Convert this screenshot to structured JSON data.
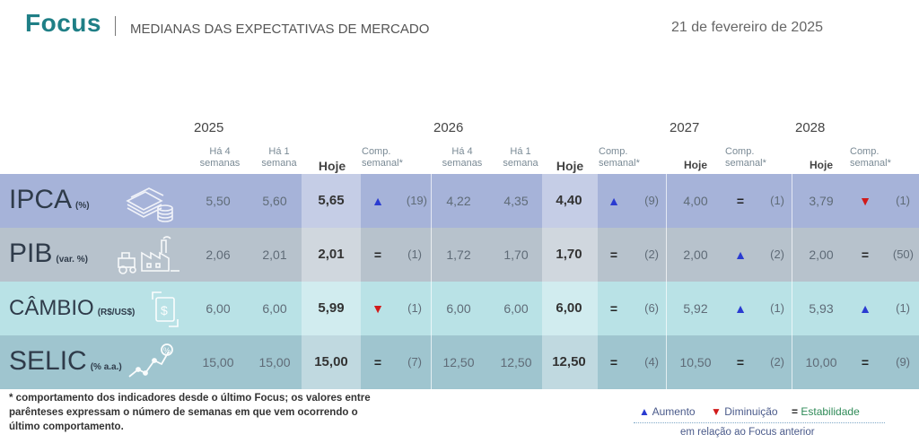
{
  "header": {
    "brand": "Focus",
    "subtitle": "MEDIANAS DAS EXPECTATIVAS DE MERCADO",
    "date": "21 de fevereiro de 2025"
  },
  "years": [
    "2025",
    "2026",
    "2027",
    "2028"
  ],
  "columns": {
    "ha4": "Há 4 semanas",
    "ha4_l1": "Há 4",
    "ha4_l2": "semanas",
    "ha1_l1": "Há 1",
    "ha1_l2": "semana",
    "hoje": "Hoje",
    "comp_l1": "Comp.",
    "comp_l2": "semanal*"
  },
  "rows": [
    {
      "name": "IPCA",
      "unit": "(%)",
      "icon": "money-stack-icon",
      "color": "#a6b3d9",
      "y2025": {
        "ha4": "5,50",
        "ha1": "5,60",
        "hoje": "5,65",
        "sym": "▲",
        "cls": "up",
        "count": "(19)"
      },
      "y2026": {
        "ha4": "4,22",
        "ha1": "4,35",
        "hoje": "4,40",
        "sym": "▲",
        "cls": "up",
        "count": "(9)"
      },
      "y2027": {
        "hoje": "4,00",
        "sym": "=",
        "cls": "eq",
        "count": "(1)"
      },
      "y2028": {
        "hoje": "3,79",
        "sym": "▼",
        "cls": "down",
        "count": "(1)"
      }
    },
    {
      "name": "PIB",
      "unit": "(var. %)",
      "icon": "factory-icon",
      "color": "#b7c2cc",
      "y2025": {
        "ha4": "2,06",
        "ha1": "2,01",
        "hoje": "2,01",
        "sym": "=",
        "cls": "eq",
        "count": "(1)"
      },
      "y2026": {
        "ha4": "1,72",
        "ha1": "1,70",
        "hoje": "1,70",
        "sym": "=",
        "cls": "eq",
        "count": "(2)"
      },
      "y2027": {
        "hoje": "2,00",
        "sym": "▲",
        "cls": "up",
        "count": "(2)"
      },
      "y2028": {
        "hoje": "2,00",
        "sym": "=",
        "cls": "eq",
        "count": "(50)"
      }
    },
    {
      "name": "CÂMBIO",
      "unit": "(R$/US$)",
      "icon": "dollar-exchange-icon",
      "color": "#b9e2e6",
      "y2025": {
        "ha4": "6,00",
        "ha1": "6,00",
        "hoje": "5,99",
        "sym": "▼",
        "cls": "down",
        "count": "(1)"
      },
      "y2026": {
        "ha4": "6,00",
        "ha1": "6,00",
        "hoje": "6,00",
        "sym": "=",
        "cls": "eq",
        "count": "(6)"
      },
      "y2027": {
        "hoje": "5,92",
        "sym": "▲",
        "cls": "up",
        "count": "(1)"
      },
      "y2028": {
        "hoje": "5,93",
        "sym": "▲",
        "cls": "up",
        "count": "(1)"
      }
    },
    {
      "name": "SELIC",
      "unit": "(% a.a.)",
      "icon": "rate-chart-icon",
      "color": "#9fc5cf",
      "y2025": {
        "ha4": "15,00",
        "ha1": "15,00",
        "hoje": "15,00",
        "sym": "=",
        "cls": "eq",
        "count": "(7)"
      },
      "y2026": {
        "ha4": "12,50",
        "ha1": "12,50",
        "hoje": "12,50",
        "sym": "=",
        "cls": "eq",
        "count": "(4)"
      },
      "y2027": {
        "hoje": "10,50",
        "sym": "=",
        "cls": "eq",
        "count": "(2)"
      },
      "y2028": {
        "hoje": "10,00",
        "sym": "=",
        "cls": "eq",
        "count": "(9)"
      }
    }
  ],
  "footnote": {
    "line1": "* comportamento dos indicadores desde o último Focus; os valores entre",
    "line2": "parênteses expressam o número de semanas em que vem ocorrendo o",
    "line3": "último comportamento."
  },
  "legend": {
    "up_sym": "▲",
    "up_label": "Aumento",
    "down_sym": "▼",
    "down_label": "Diminuição",
    "eq_sym": "=",
    "eq_label": "Estabilidade",
    "subtitle": "em relação ao Focus anterior"
  }
}
